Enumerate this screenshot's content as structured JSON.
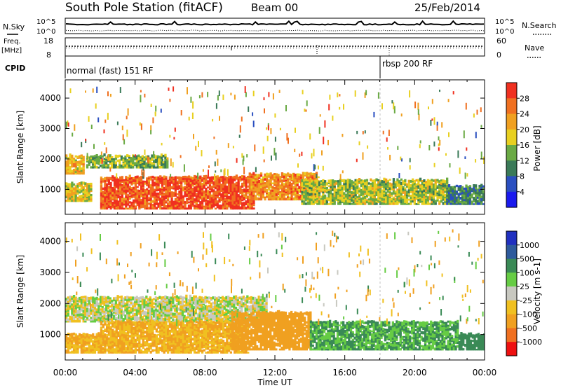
{
  "header": {
    "station": "South Pole Station (fitACF)",
    "beam": "Beam 00",
    "date": "25/Feb/2014"
  },
  "status_panels": {
    "nsky_label": "N.Sky",
    "nsearch_label": "N.Search",
    "noise_ticks": [
      "10^5",
      "10^0"
    ],
    "freq_label": "Freq.",
    "freq_unit": "[MHz]",
    "freq_ticks": [
      "18",
      "8"
    ],
    "nave_label": "Nave",
    "nave_ticks": [
      "60",
      "0"
    ],
    "cpid_label": "CPID",
    "cpid_segments": [
      {
        "label": "normal (fast) 151 RF",
        "start_hour": 0
      },
      {
        "label": "rbsp 200 RF",
        "start_hour": 18
      }
    ]
  },
  "chart_data": [
    {
      "type": "heatmap",
      "title": "",
      "parameter": "Power",
      "xlabel": "",
      "ylabel": "Slant Range [km]",
      "xlim": [
        0,
        24
      ],
      "ylim": [
        180,
        4600
      ],
      "y_ticks": [
        "1000",
        "2000",
        "3000",
        "4000"
      ],
      "colorbar": {
        "label": "Power [dB]",
        "ticks": [
          "4",
          "8",
          "12",
          "16",
          "20",
          "24",
          "28"
        ],
        "colors": [
          "#1a1aee",
          "#2a4fc0",
          "#3a7a58",
          "#6aaa44",
          "#e8d020",
          "#f0a020",
          "#f07020",
          "#f03020"
        ]
      },
      "features": [
        {
          "hours": [
            0.0,
            1.0
          ],
          "range_km": [
            1500,
            2100
          ],
          "level_db": 20
        },
        {
          "hours": [
            1.2,
            5.8
          ],
          "range_km": [
            1700,
            2100
          ],
          "level_db": 14
        },
        {
          "hours": [
            0.0,
            1.5
          ],
          "range_km": [
            600,
            1200
          ],
          "level_db": 18
        },
        {
          "hours": [
            2.0,
            10.8
          ],
          "range_km": [
            350,
            1400
          ],
          "level_db": 28
        },
        {
          "hours": [
            10.5,
            14.5
          ],
          "range_km": [
            650,
            1500
          ],
          "level_db": 24
        },
        {
          "hours": [
            13.5,
            21.8
          ],
          "range_km": [
            500,
            1300
          ],
          "level_db": 16
        },
        {
          "hours": [
            21.8,
            24.0
          ],
          "range_km": [
            500,
            1100
          ],
          "level_db": 10
        }
      ]
    },
    {
      "type": "heatmap",
      "title": "",
      "parameter": "Velocity",
      "xlabel": "Time UT",
      "ylabel": "Slant Range [km]",
      "xlim": [
        0,
        24
      ],
      "ylim": [
        180,
        4600
      ],
      "x_ticks": [
        "00:00",
        "04:00",
        "08:00",
        "12:00",
        "16:00",
        "20:00",
        "00:00"
      ],
      "y_ticks": [
        "1000",
        "2000",
        "3000",
        "4000"
      ],
      "colorbar": {
        "label": "Velocity [m s-1]",
        "ticks": [
          "1000",
          "500",
          "100",
          "25",
          "-25",
          "-100",
          "-500",
          "-1000"
        ],
        "colors": [
          "#2030c0",
          "#2e5a9c",
          "#3a8a56",
          "#66cc44",
          "#c8c8c0",
          "#f0c020",
          "#f0a020",
          "#f07020",
          "#ee1010"
        ]
      },
      "features": [
        {
          "hours": [
            0.0,
            11.5
          ],
          "range_km": [
            1400,
            2200
          ],
          "velocity": 0
        },
        {
          "hours": [
            0.0,
            2.0
          ],
          "range_km": [
            400,
            1000
          ],
          "velocity": -100
        },
        {
          "hours": [
            2.0,
            10.5
          ],
          "range_km": [
            400,
            1400
          ],
          "velocity": -100
        },
        {
          "hours": [
            9.5,
            14.0
          ],
          "range_km": [
            500,
            1700
          ],
          "velocity": -400
        },
        {
          "hours": [
            14.0,
            22.5
          ],
          "range_km": [
            500,
            1400
          ],
          "velocity": 100
        },
        {
          "hours": [
            22.5,
            24.0
          ],
          "range_km": [
            500,
            1000
          ],
          "velocity": 300
        }
      ]
    }
  ]
}
